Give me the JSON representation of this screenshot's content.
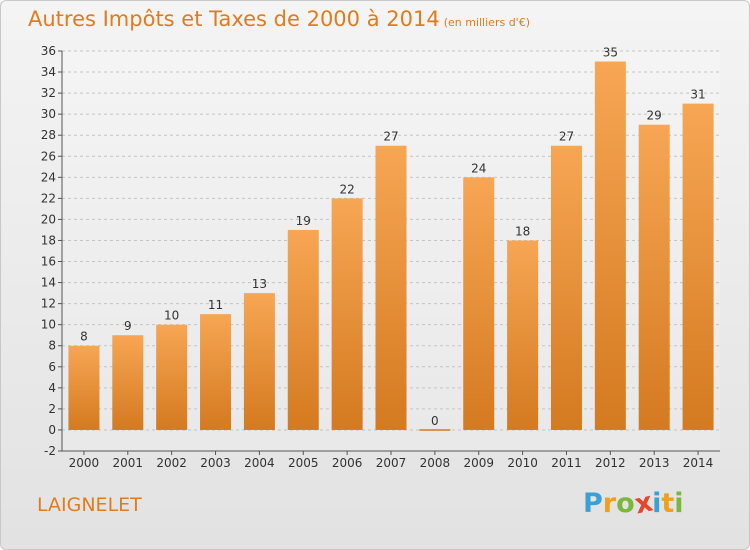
{
  "header": {
    "title": "Autres Impôts et Taxes de 2000 à 2014",
    "subtitle": "(en milliers d'€)"
  },
  "footer": {
    "commune": "LAIGNELET",
    "logo_text": "Proxiti",
    "logo_letters": [
      {
        "ch": "P",
        "color": "#3aa0d8"
      },
      {
        "ch": "r",
        "color": "#f0a020"
      },
      {
        "ch": "o",
        "color": "#7ab83c"
      },
      {
        "ch": "x",
        "color": "#e8452c"
      },
      {
        "ch": "i",
        "color": "#3aa0d8"
      },
      {
        "ch": "t",
        "color": "#f0a020"
      },
      {
        "ch": "i",
        "color": "#7ab83c"
      }
    ]
  },
  "colors": {
    "bar_top": "#f7a654",
    "bar_bottom": "#d47a20",
    "accent": "#e07c1c"
  },
  "chart_data": {
    "type": "bar",
    "title": "Autres Impôts et Taxes de 2000 à 2014",
    "subtitle": "(en milliers d'€)",
    "xlabel": "",
    "ylabel": "",
    "categories": [
      "2000",
      "2001",
      "2002",
      "2003",
      "2004",
      "2005",
      "2006",
      "2007",
      "2008",
      "2009",
      "2010",
      "2011",
      "2012",
      "2013",
      "2014"
    ],
    "values": [
      8,
      9,
      10,
      11,
      13,
      19,
      22,
      27,
      0,
      24,
      18,
      27,
      35,
      29,
      31
    ],
    "ylim": [
      -2,
      36
    ],
    "yticks": [
      -2,
      0,
      2,
      4,
      6,
      8,
      10,
      12,
      14,
      16,
      18,
      20,
      22,
      24,
      26,
      28,
      30,
      32,
      34,
      36
    ],
    "grid": true,
    "legend": "none"
  }
}
